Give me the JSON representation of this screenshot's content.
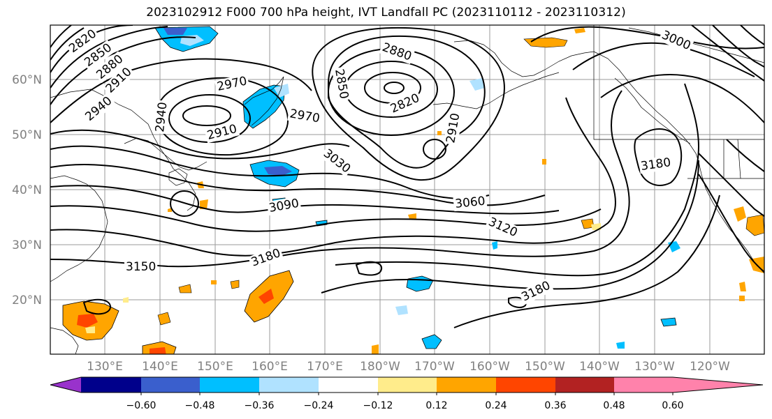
{
  "title": "2023102912 F000 700 hPa height, IVT Landfall PC (2023110112 - 2023110312)",
  "lat_labels": [
    "60°N",
    "50°N",
    "40°N",
    "30°N",
    "20°N"
  ],
  "lon_labels": [
    "130°E",
    "140°E",
    "150°E",
    "160°E",
    "170°E",
    "180°W",
    "170°W",
    "160°W",
    "150°W",
    "140°W",
    "130°W",
    "120°W"
  ],
  "height_contour_labels": [
    "2820",
    "2850",
    "2880",
    "2910",
    "2940",
    "2970",
    "2940",
    "2910",
    "2880",
    "2850",
    "2820",
    "2910",
    "2970",
    "3000",
    "3030",
    "3060",
    "3090",
    "3120",
    "3150",
    "3180",
    "3180",
    "3180"
  ],
  "colorbar": {
    "ticks": [
      "−0.60",
      "−0.48",
      "−0.36",
      "−0.24",
      "−0.12",
      "0.12",
      "0.24",
      "0.36",
      "0.48",
      "0.60"
    ],
    "colors": [
      "#9932cc",
      "#00008b",
      "#3a5fcd",
      "#00bfff",
      "#b0e2ff",
      "#ffffff",
      "#ffec8b",
      "#ffa500",
      "#ff4500",
      "#b22222",
      "#ff82ab"
    ]
  }
}
